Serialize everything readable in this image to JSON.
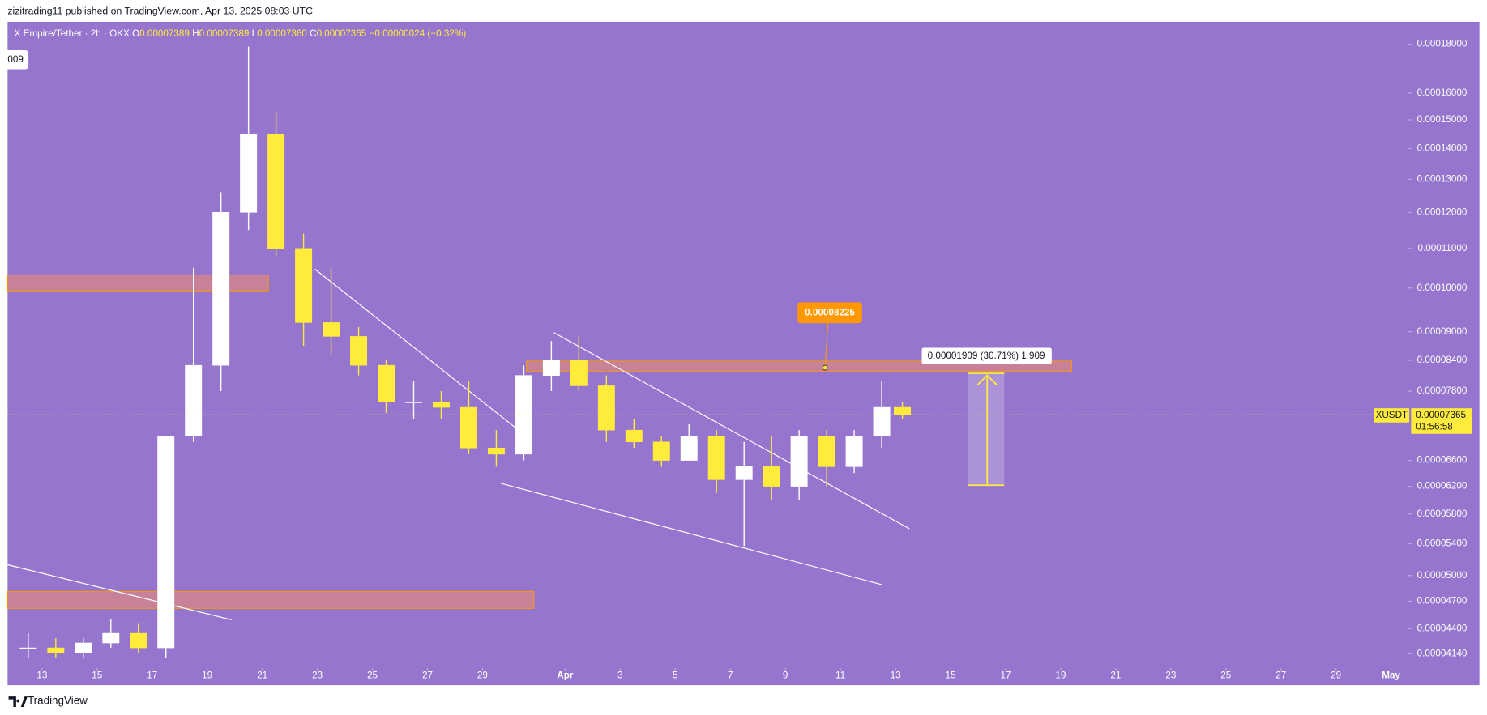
{
  "header": {
    "text": "zizitrading11 published on TradingView.com, Apr 13, 2025 08:03 UTC"
  },
  "footer": {
    "brand": "TradingView"
  },
  "chart_data": {
    "type": "candlestick",
    "legend": {
      "symbol": "X Empire/Tether · 2h · OKX",
      "o_label": "O",
      "open": "0.00007389",
      "h_label": "H",
      "high": "0.00007389",
      "l_label": "L",
      "low": "0.00007360",
      "c_label": "C",
      "close": "0.00007365",
      "change": "−0.00000024 (−0.32%)"
    },
    "x": [
      "2025-03-12T12:00",
      "2025-03-13T12:00",
      "2025-03-14T12:00",
      "2025-03-15T12:00",
      "2025-03-16T12:00",
      "2025-03-17T12:00",
      "2025-03-18T12:00",
      "2025-03-19T12:00",
      "2025-03-20T12:00",
      "2025-03-21T12:00",
      "2025-03-22T12:00",
      "2025-03-23T12:00",
      "2025-03-24T12:00",
      "2025-03-25T12:00",
      "2025-03-26T12:00",
      "2025-03-27T12:00",
      "2025-03-28T12:00",
      "2025-03-29T12:00",
      "2025-03-30T12:00",
      "2025-03-31T12:00",
      "2025-04-01T12:00",
      "2025-04-02T12:00",
      "2025-04-03T12:00",
      "2025-04-04T12:00",
      "2025-04-05T12:00",
      "2025-04-06T12:00",
      "2025-04-07T12:00",
      "2025-04-08T12:00",
      "2025-04-09T12:00",
      "2025-04-10T12:00",
      "2025-04-11T12:00",
      "2025-04-12T12:00",
      "2025-04-13T06:00"
    ],
    "open": [
      4.2e-05,
      4.2e-05,
      4.15e-05,
      4.25e-05,
      4.35e-05,
      4.2e-05,
      7e-05,
      8.3e-05,
      0.00012,
      0.000145,
      0.00011,
      9.2e-05,
      8.9e-05,
      8.3e-05,
      7.6e-05,
      7.6e-05,
      7.5e-05,
      6.8e-05,
      6.7e-05,
      8.1e-05,
      8.4e-05,
      7.9e-05,
      7.1e-05,
      6.9e-05,
      6.6e-05,
      7e-05,
      6.3e-05,
      6.5e-05,
      6.2e-05,
      7e-05,
      6.5e-05,
      7e-05,
      7.5e-05
    ],
    "high": [
      4.35e-05,
      4.3e-05,
      4.3e-05,
      4.5e-05,
      4.45e-05,
      7e-05,
      0.000105,
      0.000126,
      0.000179,
      0.000153,
      0.000114,
      0.000105,
      9.1e-05,
      8.4e-05,
      8e-05,
      7.8e-05,
      8e-05,
      7.1e-05,
      8.3e-05,
      8.8e-05,
      8.9e-05,
      8.1e-05,
      7.3e-05,
      7e-05,
      7.2e-05,
      7.1e-05,
      6.9e-05,
      7e-05,
      7.1e-05,
      7.1e-05,
      7.1e-05,
      8e-05,
      7.6e-05
    ],
    "low": [
      4.1e-05,
      4.1e-05,
      4.1e-05,
      4.2e-05,
      4.15e-05,
      4.1e-05,
      6.9e-05,
      7.8e-05,
      0.000115,
      0.000108,
      8.7e-05,
      8.5e-05,
      8.1e-05,
      7.4e-05,
      7.3e-05,
      7.3e-05,
      6.7e-05,
      6.5e-05,
      6.6e-05,
      7.8e-05,
      7.8e-05,
      6.9e-05,
      6.8e-05,
      6.5e-05,
      6.6e-05,
      6.1e-05,
      5.37e-05,
      6e-05,
      6e-05,
      6.2e-05,
      6.4e-05,
      6.8e-05,
      7.3e-05
    ],
    "close": [
      4.2e-05,
      4.15e-05,
      4.25e-05,
      4.35e-05,
      4.2e-05,
      7e-05,
      8.3e-05,
      0.00012,
      0.000145,
      0.00011,
      9.2e-05,
      8.9e-05,
      8.3e-05,
      7.6e-05,
      7.6e-05,
      7.5e-05,
      6.8e-05,
      6.7e-05,
      8.1e-05,
      8.4e-05,
      7.9e-05,
      7.1e-05,
      6.9e-05,
      6.6e-05,
      7e-05,
      6.3e-05,
      6.5e-05,
      6.2e-05,
      7e-05,
      6.5e-05,
      7e-05,
      7.5e-05,
      7.365e-05
    ],
    "up_color": "#ffffff",
    "down_color": "#ffeb3b",
    "log_scale": true,
    "xlim": [
      "2025-03-11T18:00",
      "2025-05-01T15:00"
    ],
    "ylim": [
      4e-05,
      0.00019
    ],
    "xticks": [
      {
        "value": "2025-03-13",
        "label": "13"
      },
      {
        "value": "2025-03-15",
        "label": "15"
      },
      {
        "value": "2025-03-17",
        "label": "17"
      },
      {
        "value": "2025-03-19",
        "label": "19"
      },
      {
        "value": "2025-03-21",
        "label": "21"
      },
      {
        "value": "2025-03-23",
        "label": "23"
      },
      {
        "value": "2025-03-25",
        "label": "25"
      },
      {
        "value": "2025-03-27",
        "label": "27"
      },
      {
        "value": "2025-03-29",
        "label": "29"
      },
      {
        "value": "2025-04-01",
        "label": "Apr"
      },
      {
        "value": "2025-04-03",
        "label": "3"
      },
      {
        "value": "2025-04-05",
        "label": "5"
      },
      {
        "value": "2025-04-07",
        "label": "7"
      },
      {
        "value": "2025-04-09",
        "label": "9"
      },
      {
        "value": "2025-04-11",
        "label": "11"
      },
      {
        "value": "2025-04-13",
        "label": "13"
      },
      {
        "value": "2025-04-15",
        "label": "15"
      },
      {
        "value": "2025-04-17",
        "label": "17"
      },
      {
        "value": "2025-04-19",
        "label": "19"
      },
      {
        "value": "2025-04-21",
        "label": "21"
      },
      {
        "value": "2025-04-23",
        "label": "23"
      },
      {
        "value": "2025-04-25",
        "label": "25"
      },
      {
        "value": "2025-04-27",
        "label": "27"
      },
      {
        "value": "2025-04-29",
        "label": "29"
      },
      {
        "value": "2025-05-01",
        "label": "May"
      }
    ],
    "yticks": [
      {
        "value": 0.00018,
        "label": "0.00018000"
      },
      {
        "value": 0.00016,
        "label": "0.00016000"
      },
      {
        "value": 0.00015,
        "label": "0.00015000"
      },
      {
        "value": 0.00014,
        "label": "0.00014000"
      },
      {
        "value": 0.00013,
        "label": "0.00013000"
      },
      {
        "value": 0.00012,
        "label": "0.00012000"
      },
      {
        "value": 0.00011,
        "label": "0.00011000"
      },
      {
        "value": 0.0001,
        "label": "0.00010000"
      },
      {
        "value": 9e-05,
        "label": "0.00009000"
      },
      {
        "value": 8.4e-05,
        "label": "0.00008400"
      },
      {
        "value": 7.8e-05,
        "label": "0.00007800"
      },
      {
        "value": 6.6e-05,
        "label": "0.00006600"
      },
      {
        "value": 6.2e-05,
        "label": "0.00006200"
      },
      {
        "value": 5.8e-05,
        "label": "0.00005800"
      },
      {
        "value": 5.4e-05,
        "label": "0.00005400"
      },
      {
        "value": 5e-05,
        "label": "0.00005000"
      },
      {
        "value": 4.7e-05,
        "label": "0.00004700"
      },
      {
        "value": 4.4e-05,
        "label": "0.00004400"
      },
      {
        "value": 4.14e-05,
        "label": "0.00004140"
      }
    ],
    "last_price": {
      "symbol": "XUSDT",
      "value": 7.365e-05,
      "countdown": "01:56:58"
    },
    "annotations": {
      "callout": "0.00008225",
      "measure": "0.00001909 (30.71%) 1,909",
      "cut_label": "009"
    }
  }
}
